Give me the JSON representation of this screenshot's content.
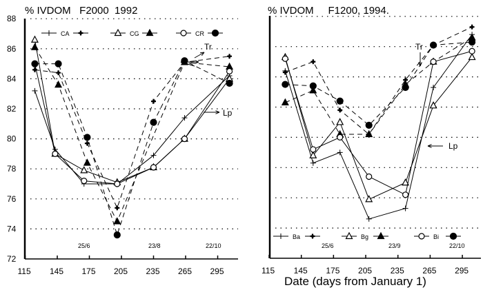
{
  "chart_data": [
    {
      "type": "line",
      "title": "% IVDOM   F2000  1992",
      "ylabel": "% IVDOM",
      "xlabel": "",
      "ylim": [
        72,
        88
      ],
      "xlim": [
        115,
        310
      ],
      "yticks": [
        "72",
        "74",
        "76",
        "78",
        "80",
        "82",
        "84",
        "86",
        "88"
      ],
      "xticks": [
        "115",
        "145",
        "175",
        "205",
        "235",
        "265",
        "295"
      ],
      "date_labels": [
        "25/6",
        "23/8",
        "22/10"
      ],
      "legend": [
        "CA",
        "CG",
        "CR"
      ],
      "legend_placement": "top",
      "annotations": [
        "Tr",
        "Lp"
      ],
      "series": [
        {
          "name": "CA (solid)",
          "style": "solid",
          "marker": "plus",
          "x": [
            124,
            143,
            170,
            201,
            235,
            264,
            306
          ],
          "y": [
            83.2,
            79.3,
            77.0,
            77.0,
            78.9,
            81.4,
            84.2
          ]
        },
        {
          "name": "CA (dashed)",
          "style": "dashed",
          "marker": "plus-filled",
          "x": [
            124,
            146,
            173,
            201,
            235,
            264,
            306
          ],
          "y": [
            84.6,
            84.4,
            79.7,
            75.4,
            82.5,
            85.1,
            85.5
          ]
        },
        {
          "name": "CG (solid)",
          "style": "solid",
          "marker": "triangle-open",
          "x": [
            124,
            143,
            170,
            201,
            235,
            264,
            306
          ],
          "y": [
            86.6,
            79.0,
            77.9,
            77.1,
            78.1,
            80.0,
            84.0
          ]
        },
        {
          "name": "CG (dashed)",
          "style": "dashed",
          "marker": "triangle-filled",
          "x": [
            124,
            146,
            173,
            201,
            264,
            306
          ],
          "y": [
            86.1,
            83.6,
            78.4,
            74.5,
            85.1,
            84.8
          ]
        },
        {
          "name": "CR (solid)",
          "style": "solid",
          "marker": "circle-open",
          "x": [
            124,
            143,
            170,
            201,
            235,
            264,
            306
          ],
          "y": [
            85.0,
            79.0,
            77.2,
            77.0,
            78.1,
            80.0,
            84.5
          ]
        },
        {
          "name": "CR (dashed)",
          "style": "dashed",
          "marker": "circle-filled",
          "x": [
            124,
            146,
            173,
            201,
            235,
            264,
            306
          ],
          "y": [
            85.0,
            85.0,
            80.1,
            73.6,
            81.1,
            85.2,
            83.7
          ]
        }
      ]
    },
    {
      "type": "line",
      "title": "% IVDOM     F1200, 1994.",
      "ylabel": "% IVDOM",
      "xlabel": "Date (days from January 1)",
      "ylim": [
        72,
        88
      ],
      "xlim": [
        115,
        310
      ],
      "xticks": [
        "115",
        "145",
        "175",
        "205",
        "235",
        "265",
        "295"
      ],
      "date_labels": [
        "25/6",
        "23/9",
        "22/10"
      ],
      "legend": [
        "Ba",
        "Bg",
        "Bi"
      ],
      "legend_placement": "bottom",
      "annotations": [
        "Tr",
        "Lp"
      ],
      "series": [
        {
          "name": "Ba (solid)",
          "style": "solid",
          "marker": "plus",
          "x": [
            130,
            156,
            181,
            208,
            242,
            268,
            304
          ],
          "y": [
            84.4,
            78.3,
            79.0,
            74.6,
            75.3,
            83.3,
            86.8
          ]
        },
        {
          "name": "Ba (dashed)",
          "style": "dashed",
          "marker": "plus-filled",
          "x": [
            130,
            156,
            181,
            208,
            242,
            268,
            304
          ],
          "y": [
            84.3,
            85.0,
            81.8,
            80.2,
            83.8,
            86.1,
            87.3
          ]
        },
        {
          "name": "Bg (solid)",
          "style": "solid",
          "marker": "triangle-open",
          "x": [
            130,
            156,
            181,
            208,
            242,
            268,
            304
          ],
          "y": [
            85.3,
            78.8,
            81.0,
            75.9,
            77.0,
            82.1,
            85.3
          ]
        },
        {
          "name": "Bg (dashed)",
          "style": "dashed",
          "marker": "triangle-filled",
          "x": [
            130,
            156,
            181,
            208,
            242,
            268,
            304
          ],
          "y": [
            82.3,
            83.1,
            80.2,
            80.2,
            83.5,
            85.0,
            86.6
          ]
        },
        {
          "name": "Bi (solid)",
          "style": "solid",
          "marker": "circle-open",
          "x": [
            130,
            156,
            181,
            208,
            242,
            268,
            304
          ],
          "y": [
            85.2,
            79.2,
            80.0,
            77.4,
            76.2,
            85.0,
            85.7
          ]
        },
        {
          "name": "Bi (dashed)",
          "style": "dashed",
          "marker": "circle-filled",
          "x": [
            130,
            156,
            181,
            208,
            242,
            268,
            304
          ],
          "y": [
            83.5,
            83.4,
            82.4,
            80.8,
            83.3,
            86.1,
            86.3
          ]
        }
      ]
    }
  ]
}
